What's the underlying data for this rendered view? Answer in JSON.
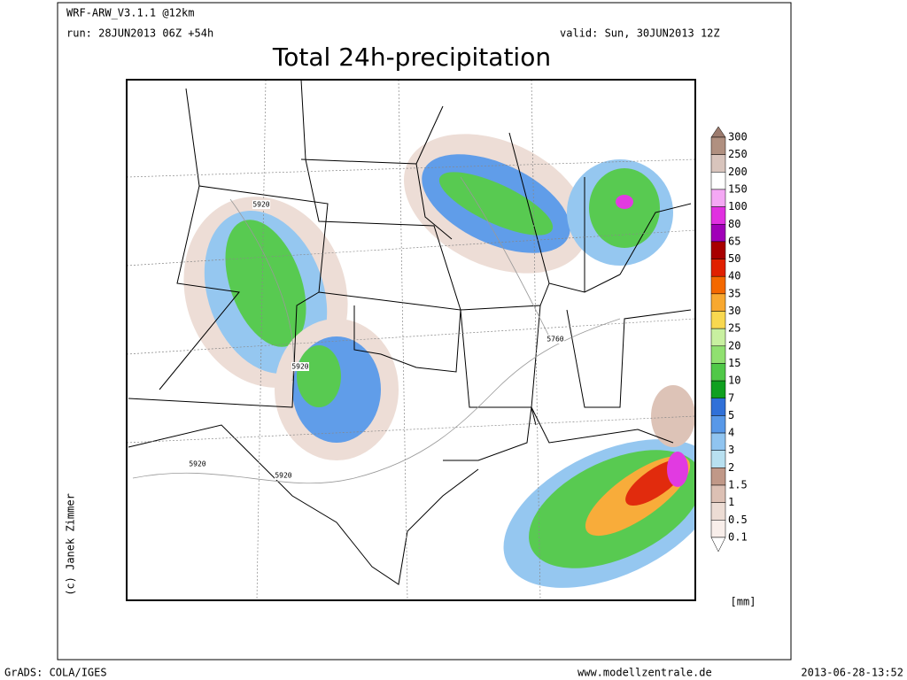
{
  "header": {
    "model": "WRF-ARW_V3.1.1 @12km",
    "run": "run: 28JUN2013 06Z +54h",
    "valid": "valid: Sun, 30JUN2013 12Z",
    "title": "Total 24h-precipitation"
  },
  "map": {
    "contour_labels": [
      "5920",
      "5920",
      "5760",
      "5920",
      "5920"
    ]
  },
  "legend": {
    "unit": "[mm]",
    "levels": [
      {
        "label": 300,
        "color": "#b09080"
      },
      {
        "label": 250,
        "color": "#d8c4bc"
      },
      {
        "label": 200,
        "color": "#ffffff"
      },
      {
        "label": 150,
        "color": "#f4a8f4"
      },
      {
        "label": 100,
        "color": "#e030e0"
      },
      {
        "label": 80,
        "color": "#a000b8"
      },
      {
        "label": 65,
        "color": "#a80000"
      },
      {
        "label": 50,
        "color": "#e02000"
      },
      {
        "label": 40,
        "color": "#f46800"
      },
      {
        "label": 35,
        "color": "#f8a830"
      },
      {
        "label": 30,
        "color": "#f8d850"
      },
      {
        "label": 25,
        "color": "#c8f0a0"
      },
      {
        "label": 20,
        "color": "#90e070"
      },
      {
        "label": 15,
        "color": "#50c848"
      },
      {
        "label": 10,
        "color": "#10a020"
      },
      {
        "label": 7,
        "color": "#3070d8"
      },
      {
        "label": 5,
        "color": "#5898e8"
      },
      {
        "label": 4,
        "color": "#90c4f0"
      },
      {
        "label": 3,
        "color": "#b8e0f0"
      },
      {
        "label": 2,
        "color": "#c09888"
      },
      {
        "label": 1.5,
        "color": "#dcc0b4"
      },
      {
        "label": 1,
        "color": "#ecdcd4"
      },
      {
        "label": 0.5,
        "color": "#f8eeea"
      },
      {
        "label": 0.1,
        "color": "#ffffff"
      }
    ]
  },
  "credit": "(c) Janek Zimmer",
  "footer": {
    "left": "GrADS: COLA/IGES",
    "center": "www.modellzentrale.de",
    "right": "2013-06-28-13:52"
  }
}
